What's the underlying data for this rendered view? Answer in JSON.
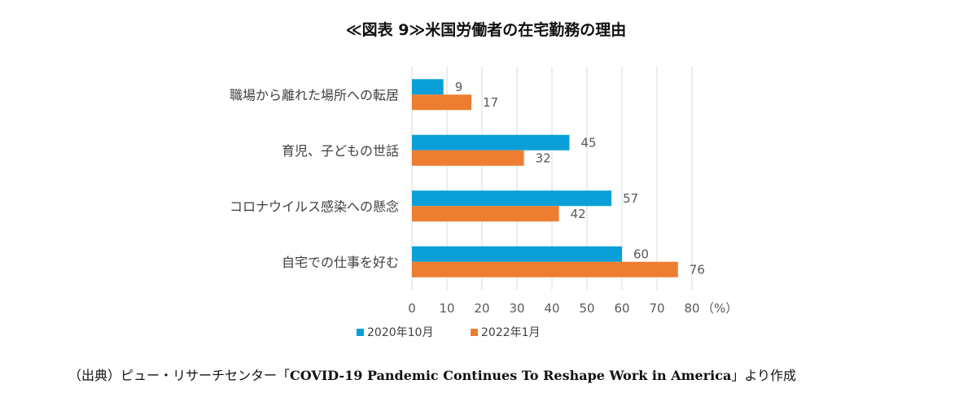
{
  "title": "≪図表 9≫米国労働者の在宅勤務の理由",
  "chart_data": {
    "type": "bar",
    "orientation": "horizontal",
    "categories": [
      "職場から離れた場所への転居",
      "育児、子どもの世話",
      "コロナウイルス感染への懸念",
      "自宅での仕事を好む"
    ],
    "series": [
      {
        "name": "2020年10月",
        "color": "#0a9fd8",
        "values": [
          9,
          45,
          57,
          60
        ]
      },
      {
        "name": "2022年1月",
        "color": "#ed7d31",
        "values": [
          17,
          32,
          42,
          76
        ]
      }
    ],
    "x_ticks": [
      "0",
      "10",
      "20",
      "30",
      "40",
      "50",
      "60",
      "70",
      "80"
    ],
    "x_unit": "（%）",
    "xlim": [
      0,
      80
    ],
    "grid": "vertical",
    "legend": "bottom",
    "data_labels": true
  },
  "source": {
    "lead": "（出典）ピュー・リサーチセンター「",
    "publication": "COVID-19 Pandemic Continues To Reshape Work in America",
    "trail": "」より作成"
  }
}
